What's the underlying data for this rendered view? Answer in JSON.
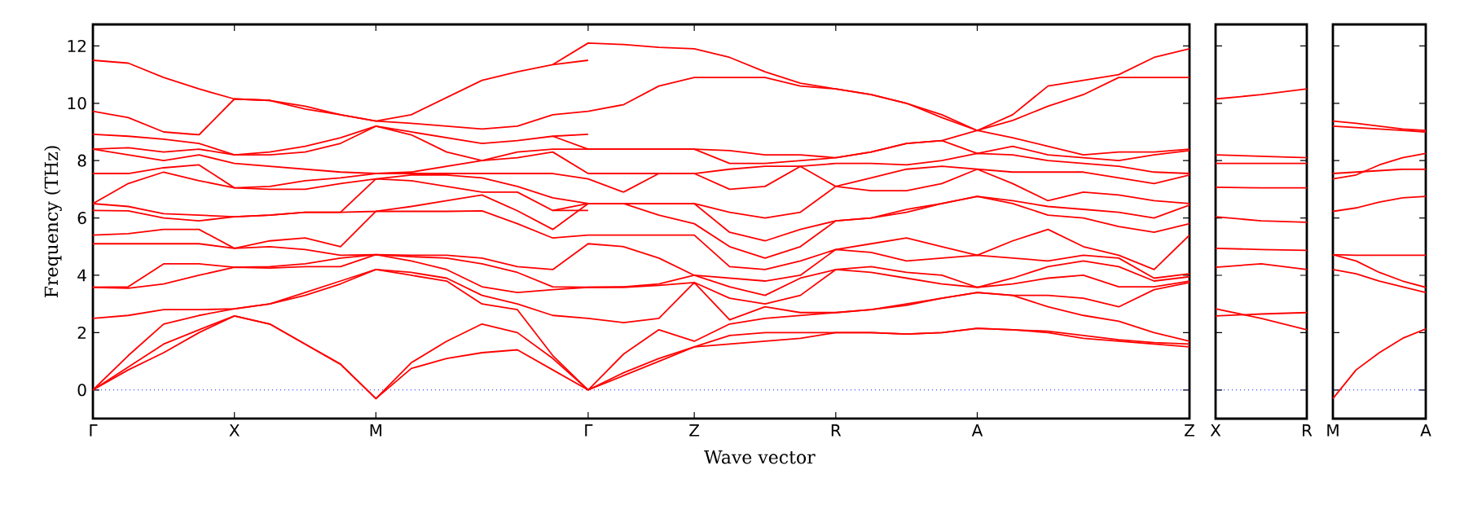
{
  "chart_data": [
    {
      "type": "line",
      "xlabel": "Wave vector",
      "ylabel": "Frequency (THz)",
      "ylim": [
        -1,
        12.75
      ],
      "yticks": [
        0,
        2,
        4,
        6,
        8,
        10,
        12
      ],
      "categories": [
        "Γ",
        null,
        null,
        null,
        "X",
        null,
        null,
        null,
        "M",
        null,
        null,
        null,
        null,
        null,
        "Γ",
        null,
        null,
        "Z",
        null,
        null,
        null,
        "R",
        null,
        null,
        null,
        "A",
        null,
        null,
        null,
        null,
        null,
        "Z"
      ],
      "grid": false,
      "marker": "none",
      "line_style": "solid",
      "ref_lines": [
        {
          "axis": "y",
          "value": 0,
          "color": "#0000ff",
          "line_style": "dotted"
        }
      ],
      "series": [
        {
          "color": "#ff0000",
          "values": [
            0,
            0.7,
            1.3,
            2.0,
            2.58,
            2.3,
            1.6,
            0.9,
            -0.3,
            0.75,
            1.1,
            1.3,
            1.4,
            0.7,
            0,
            0.5,
            1.0,
            1.5,
            1.6,
            1.7,
            1.8,
            2.0,
            2.0,
            1.95,
            2.0,
            2.15,
            2.1,
            2.0,
            1.8,
            1.7,
            1.6,
            1.5
          ]
        },
        {
          "color": "#ff0000",
          "values": [
            0,
            0.8,
            1.6,
            2.1,
            2.58,
            2.3,
            1.6,
            0.9,
            -0.3,
            0.95,
            1.7,
            2.3,
            2.0,
            1.1,
            0,
            0.6,
            1.1,
            1.5,
            1.9,
            2.0,
            2.0,
            2.0,
            2.0,
            1.95,
            2.0,
            2.15,
            2.1,
            2.05,
            1.9,
            1.75,
            1.65,
            1.6
          ]
        },
        {
          "color": "#ff0000",
          "values": [
            0,
            1.2,
            2.3,
            2.6,
            2.83,
            3.0,
            3.3,
            3.7,
            4.2,
            4.0,
            3.8,
            3.0,
            2.8,
            1.2,
            0,
            1.25,
            2.1,
            1.7,
            2.3,
            2.5,
            2.6,
            2.7,
            2.8,
            2.95,
            3.2,
            3.4,
            3.3,
            2.9,
            2.6,
            2.4,
            2.0,
            1.7
          ]
        },
        {
          "color": "#ff0000",
          "values": [
            2.5,
            2.6,
            2.8,
            2.8,
            2.83,
            3.0,
            3.4,
            3.8,
            4.2,
            4.1,
            3.9,
            3.3,
            3.0,
            2.6,
            2.5,
            2.35,
            2.5,
            3.75,
            2.45,
            2.9,
            2.7,
            2.7,
            2.8,
            3.0,
            3.2,
            3.4,
            3.3,
            3.3,
            3.2,
            2.9,
            3.5,
            3.75
          ]
        },
        {
          "color": "#ff0000",
          "values": [
            3.58,
            3.55,
            3.7,
            4.0,
            4.28,
            4.25,
            4.3,
            4.3,
            4.72,
            4.5,
            4.2,
            3.6,
            3.4,
            3.5,
            3.58,
            3.58,
            3.65,
            3.75,
            3.2,
            3.0,
            3.3,
            4.2,
            4.1,
            3.9,
            3.7,
            3.58,
            3.7,
            3.9,
            4.0,
            3.6,
            3.6,
            3.8
          ]
        },
        {
          "color": "#ff0000",
          "values": [
            3.58,
            3.6,
            4.4,
            4.4,
            4.28,
            4.3,
            4.4,
            4.6,
            4.72,
            4.65,
            4.6,
            4.4,
            4.1,
            3.6,
            3.58,
            3.6,
            3.7,
            4.0,
            3.6,
            3.3,
            3.9,
            4.2,
            4.3,
            4.1,
            4.0,
            3.58,
            3.9,
            4.3,
            4.5,
            4.3,
            3.8,
            3.95
          ]
        },
        {
          "color": "#ff0000",
          "values": [
            5.1,
            5.1,
            5.1,
            5.1,
            4.94,
            5.0,
            4.9,
            4.7,
            4.72,
            4.7,
            4.7,
            4.6,
            4.3,
            4.2,
            5.1,
            5.0,
            4.6,
            4.0,
            3.9,
            3.8,
            4.0,
            4.9,
            4.8,
            4.5,
            4.6,
            4.7,
            4.6,
            4.5,
            4.7,
            4.6,
            3.9,
            4.05
          ]
        },
        {
          "color": "#ff0000",
          "values": [
            5.4,
            5.45,
            5.6,
            5.6,
            4.94,
            5.2,
            5.3,
            5.0,
            6.23,
            6.23,
            6.23,
            6.25,
            5.8,
            5.3,
            5.4,
            5.4,
            5.4,
            5.4,
            4.3,
            4.2,
            4.5,
            4.9,
            5.1,
            5.3,
            5.0,
            4.7,
            5.2,
            5.6,
            5.0,
            4.7,
            4.2,
            5.4
          ]
        },
        {
          "color": "#ff0000",
          "values": [
            6.26,
            6.25,
            6.0,
            5.9,
            6.04,
            6.1,
            6.2,
            6.2,
            6.23,
            6.4,
            6.6,
            6.8,
            6.25,
            5.6,
            6.5,
            6.5,
            6.1,
            5.8,
            5.0,
            4.6,
            5.0,
            5.9,
            6.0,
            6.2,
            6.5,
            6.75,
            6.5,
            6.1,
            6.0,
            5.7,
            5.5,
            5.8
          ]
        },
        {
          "color": "#ff0000",
          "values": [
            6.5,
            6.4,
            6.15,
            6.1,
            6.04,
            6.1,
            6.2,
            6.2,
            7.36,
            7.3,
            7.1,
            6.9,
            6.9,
            6.26,
            6.5,
            6.5,
            6.5,
            6.5,
            5.5,
            5.2,
            5.6,
            5.9,
            6.0,
            6.3,
            6.5,
            6.75,
            6.6,
            6.4,
            6.3,
            6.2,
            6.0,
            6.45
          ]
        },
        {
          "color": "#ff0000",
          "values": [
            6.5,
            7.2,
            7.6,
            7.3,
            7.05,
            7.0,
            7.0,
            7.2,
            7.36,
            7.5,
            7.5,
            7.4,
            7.1,
            6.7,
            6.5,
            6.5,
            6.5,
            6.5,
            6.2,
            6.0,
            6.2,
            7.1,
            6.95,
            6.95,
            7.2,
            7.7,
            7.2,
            6.6,
            6.9,
            6.8,
            6.6,
            6.5
          ]
        },
        {
          "color": "#ff0000",
          "values": [
            7.55,
            7.55,
            7.75,
            7.85,
            7.05,
            7.1,
            7.3,
            7.4,
            7.55,
            7.55,
            7.55,
            7.55,
            7.55,
            7.55,
            7.36,
            6.9,
            7.55,
            7.55,
            7.0,
            7.1,
            7.8,
            7.1,
            7.4,
            7.7,
            7.8,
            7.7,
            7.6,
            7.6,
            7.6,
            7.4,
            7.2,
            7.5
          ]
        },
        {
          "color": "#ff0000",
          "values": [
            8.4,
            8.2,
            8.0,
            8.2,
            7.9,
            7.8,
            7.7,
            7.6,
            7.55,
            7.6,
            7.8,
            8.0,
            8.1,
            8.3,
            7.55,
            7.55,
            7.55,
            7.55,
            7.7,
            7.8,
            7.8,
            7.9,
            7.9,
            7.85,
            8.0,
            8.25,
            8.2,
            8.0,
            7.9,
            7.8,
            7.6,
            7.55
          ]
        },
        {
          "color": "#ff0000",
          "values": [
            8.4,
            8.45,
            8.3,
            8.4,
            8.2,
            8.2,
            8.3,
            8.6,
            9.2,
            8.9,
            8.3,
            8.0,
            8.3,
            8.4,
            8.4,
            8.4,
            8.4,
            8.4,
            7.9,
            7.9,
            8.0,
            8.1,
            8.3,
            8.6,
            8.7,
            8.25,
            8.5,
            8.2,
            8.1,
            8.0,
            8.2,
            8.35
          ]
        },
        {
          "color": "#ff0000",
          "values": [
            8.92,
            8.85,
            8.75,
            8.6,
            8.2,
            8.3,
            8.5,
            8.8,
            9.2,
            9.0,
            8.8,
            8.6,
            8.7,
            8.85,
            8.4,
            8.4,
            8.4,
            8.4,
            8.35,
            8.2,
            8.2,
            8.1,
            8.3,
            8.6,
            8.7,
            9.05,
            8.8,
            8.5,
            8.2,
            8.3,
            8.3,
            8.4
          ]
        },
        {
          "color": "#ff0000",
          "values": [
            9.72,
            9.5,
            9.0,
            8.9,
            10.15,
            10.1,
            9.8,
            9.6,
            9.38,
            9.3,
            9.2,
            9.1,
            9.2,
            9.6,
            9.72,
            9.95,
            10.6,
            10.9,
            10.9,
            10.9,
            10.6,
            10.5,
            10.3,
            10.0,
            9.5,
            9.05,
            9.4,
            9.9,
            10.3,
            10.9,
            10.9,
            10.9
          ]
        },
        {
          "color": "#ff0000",
          "values": [
            11.5,
            11.4,
            10.9,
            10.5,
            10.15,
            10.1,
            9.9,
            9.6,
            9.38,
            9.6,
            10.2,
            10.8,
            11.1,
            11.35,
            12.1,
            12.05,
            11.95,
            11.9,
            11.6,
            11.1,
            10.7,
            10.5,
            10.3,
            10.0,
            9.6,
            9.05,
            9.6,
            10.6,
            10.8,
            11.0,
            11.6,
            11.9
          ]
        },
        {
          "color": "#ff0000",
          "values": [
            null,
            null,
            null,
            null,
            null,
            null,
            null,
            null,
            null,
            null,
            null,
            null,
            null,
            6.26,
            6.26,
            null,
            null,
            null,
            null,
            null,
            null,
            null,
            null,
            null,
            null,
            null,
            null,
            null,
            null,
            null,
            null,
            null
          ]
        },
        {
          "color": "#ff0000",
          "values": [
            null,
            null,
            null,
            null,
            null,
            null,
            null,
            null,
            null,
            null,
            null,
            null,
            null,
            8.85,
            8.92,
            null,
            null,
            null,
            null,
            null,
            null,
            null,
            null,
            null,
            null,
            null,
            null,
            null,
            null,
            null,
            null,
            null
          ]
        },
        {
          "color": "#ff0000",
          "values": [
            null,
            null,
            null,
            null,
            null,
            null,
            null,
            null,
            null,
            null,
            null,
            null,
            null,
            11.35,
            11.5,
            null,
            null,
            null,
            null,
            null,
            null,
            null,
            null,
            null,
            null,
            null,
            null,
            null,
            null,
            null,
            null,
            null
          ]
        }
      ]
    },
    {
      "type": "line",
      "ylim": [
        -1,
        12.75
      ],
      "yticks": [
        0,
        2,
        4,
        6,
        8,
        10,
        12
      ],
      "tick_labels": "x",
      "categories": [
        "X",
        null,
        "R"
      ],
      "grid": false,
      "marker": "none",
      "line_style": "solid",
      "ref_lines": [
        {
          "axis": "y",
          "value": 0,
          "color": "#0000ff",
          "line_style": "dotted"
        }
      ],
      "series": [
        {
          "color": "#ff0000",
          "values": [
            10.15,
            10.3,
            10.5
          ]
        },
        {
          "color": "#ff0000",
          "values": [
            8.2,
            8.15,
            8.1
          ]
        },
        {
          "color": "#ff0000",
          "values": [
            7.9,
            7.9,
            7.9
          ]
        },
        {
          "color": "#ff0000",
          "values": [
            7.07,
            7.05,
            7.05
          ]
        },
        {
          "color": "#ff0000",
          "values": [
            6.04,
            5.9,
            5.85
          ]
        },
        {
          "color": "#ff0000",
          "values": [
            4.94,
            4.9,
            4.87
          ]
        },
        {
          "color": "#ff0000",
          "values": [
            4.28,
            4.4,
            4.2
          ]
        },
        {
          "color": "#ff0000",
          "values": [
            2.83,
            2.5,
            2.1
          ]
        },
        {
          "color": "#ff0000",
          "values": [
            2.58,
            2.65,
            2.7
          ]
        }
      ]
    },
    {
      "type": "line",
      "ylim": [
        -1,
        12.75
      ],
      "yticks": [
        0,
        2,
        4,
        6,
        8,
        10,
        12
      ],
      "tick_labels": "x",
      "categories": [
        "M",
        null,
        null,
        null,
        "A"
      ],
      "grid": false,
      "marker": "none",
      "line_style": "solid",
      "ref_lines": [
        {
          "axis": "y",
          "value": 0,
          "color": "#0000ff",
          "line_style": "dotted"
        }
      ],
      "series": [
        {
          "color": "#ff0000",
          "values": [
            9.38,
            9.3,
            9.2,
            9.1,
            9.05
          ]
        },
        {
          "color": "#ff0000",
          "values": [
            9.2,
            9.15,
            9.1,
            9.05,
            9.0
          ]
        },
        {
          "color": "#ff0000",
          "values": [
            7.36,
            7.5,
            7.85,
            8.1,
            8.25
          ]
        },
        {
          "color": "#ff0000",
          "values": [
            7.55,
            7.6,
            7.65,
            7.7,
            7.7
          ]
        },
        {
          "color": "#ff0000",
          "values": [
            6.23,
            6.35,
            6.55,
            6.7,
            6.75
          ]
        },
        {
          "color": "#ff0000",
          "values": [
            4.72,
            4.7,
            4.7,
            4.7,
            4.7
          ]
        },
        {
          "color": "#ff0000",
          "values": [
            4.72,
            4.5,
            4.1,
            3.8,
            3.58
          ]
        },
        {
          "color": "#ff0000",
          "values": [
            4.2,
            4.05,
            3.8,
            3.6,
            3.4
          ]
        },
        {
          "color": "#ff0000",
          "values": [
            -0.3,
            0.7,
            1.3,
            1.8,
            2.13
          ]
        }
      ]
    }
  ]
}
